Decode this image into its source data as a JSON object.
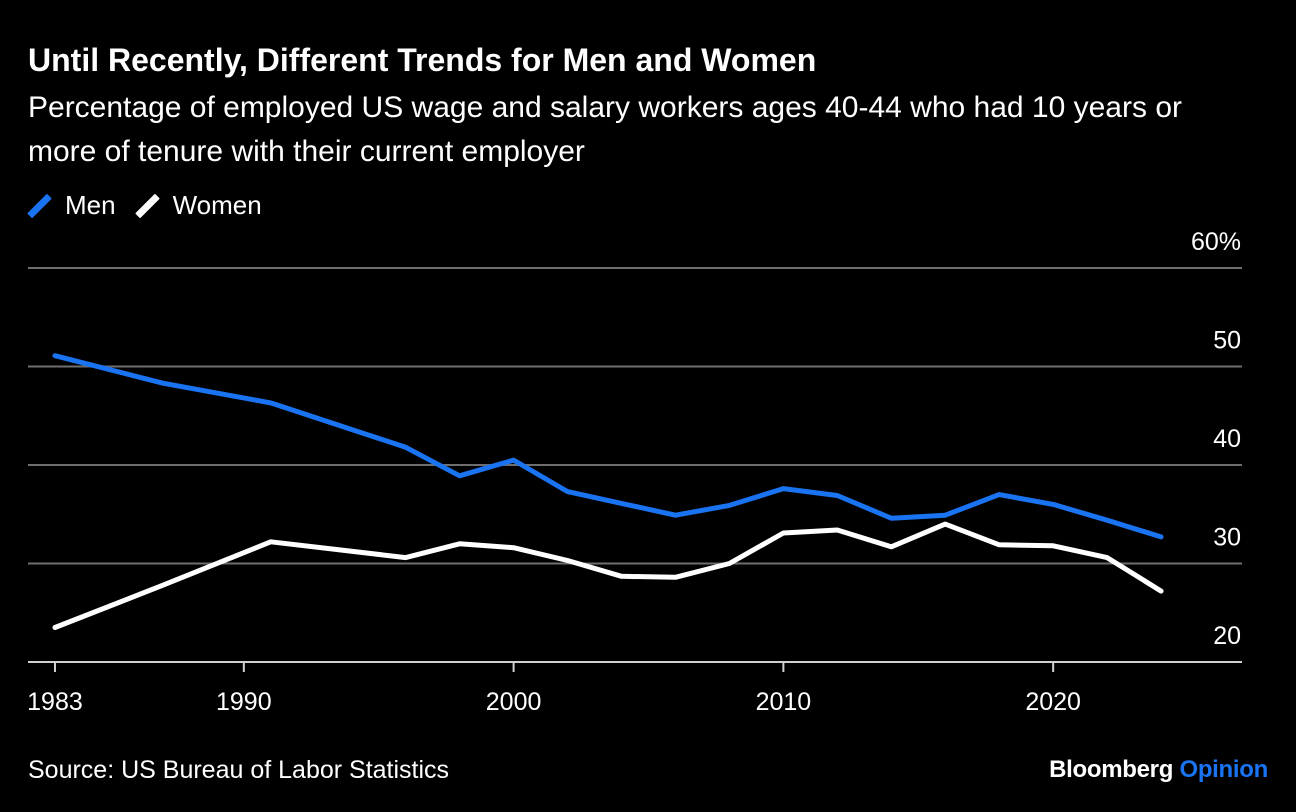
{
  "colors": {
    "background": "#000000",
    "men": "#1a73f0",
    "women": "#ffffff",
    "grid": "#6e6e6e",
    "brand_accent": "#1a73f0"
  },
  "chart_data": {
    "type": "line",
    "title": "Until Recently, Different Trends for Men and Women",
    "subtitle": "Percentage of employed US wage and salary workers ages 40-44 who had 10 years or more of tenure with their current employer",
    "x": [
      1983,
      1987,
      1991,
      1996,
      1998,
      2000,
      2002,
      2004,
      2006,
      2008,
      2010,
      2012,
      2014,
      2016,
      2018,
      2020,
      2022,
      2024
    ],
    "series": [
      {
        "name": "Men",
        "values": [
          51.1,
          48.3,
          46.3,
          41.8,
          38.9,
          40.5,
          37.3,
          36.1,
          34.9,
          35.9,
          37.6,
          36.9,
          34.6,
          34.9,
          37.0,
          36.0,
          34.4,
          32.7
        ]
      },
      {
        "name": "Women",
        "values": [
          23.5,
          27.8,
          32.2,
          30.6,
          32.0,
          31.6,
          30.3,
          28.7,
          28.6,
          30.0,
          33.1,
          33.4,
          31.7,
          34.0,
          31.9,
          31.8,
          30.6,
          27.2
        ]
      }
    ],
    "ylim": [
      20,
      60
    ],
    "yticks": [
      20,
      30,
      40,
      50,
      60
    ],
    "ytick_labels": [
      "20",
      "30",
      "40",
      "50",
      "60%"
    ],
    "xticks": [
      1983,
      1990,
      2000,
      2010,
      2020
    ],
    "xtick_labels": [
      "1983",
      "1990",
      "2000",
      "2010",
      "2020"
    ],
    "xlim": [
      1982,
      2027
    ],
    "grid": true,
    "legend_position": "top-left",
    "xlabel": "",
    "ylabel": ""
  },
  "legend": {
    "men_label": "Men",
    "women_label": "Women"
  },
  "footer": {
    "source": "Source: US Bureau of Labor Statistics",
    "brand_main": "Bloomberg",
    "brand_accent": "Opinion"
  }
}
